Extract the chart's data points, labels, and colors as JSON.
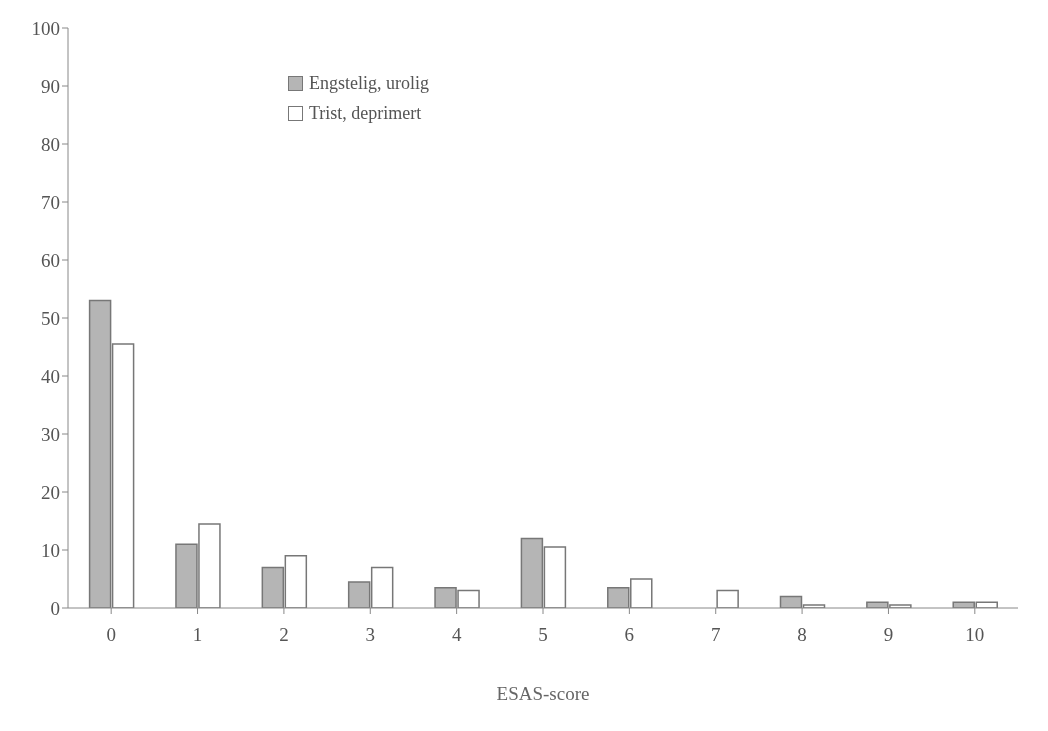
{
  "chart_data": {
    "type": "bar",
    "xlabel": "ESAS-score",
    "categories": [
      "0",
      "1",
      "2",
      "3",
      "4",
      "5",
      "6",
      "7",
      "8",
      "9",
      "10"
    ],
    "series": [
      {
        "name": "Engstelig, urolig",
        "color": "#b5b5b5",
        "values": [
          53,
          11,
          7,
          4.5,
          3.5,
          12,
          3.5,
          0,
          2,
          1,
          1
        ]
      },
      {
        "name": "Trist, deprimert",
        "color": "#ffffff",
        "values": [
          45.5,
          14.5,
          9,
          7,
          3,
          10.5,
          5,
          3,
          0.5,
          0.5,
          1
        ]
      }
    ],
    "ylim": [
      0,
      100
    ],
    "yticks": [
      0,
      10,
      20,
      30,
      40,
      50,
      60,
      70,
      80,
      90,
      100
    ],
    "legend": "top left"
  }
}
